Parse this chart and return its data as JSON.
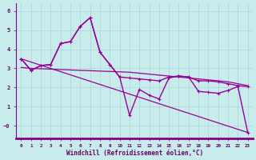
{
  "xlabel": "Windchill (Refroidissement éolien,°C)",
  "bg_color": "#c8ecec",
  "grid_color": "#b0d8d8",
  "line_color": "#990099",
  "axis_bar_color": "#880088",
  "xlim": [
    -0.5,
    23.5
  ],
  "ylim": [
    -0.65,
    6.4
  ],
  "xticks": [
    0,
    1,
    2,
    3,
    4,
    5,
    6,
    7,
    8,
    9,
    10,
    11,
    12,
    13,
    14,
    15,
    16,
    17,
    18,
    19,
    20,
    21,
    22,
    23
  ],
  "yticks": [
    0,
    1,
    2,
    3,
    4,
    5,
    6
  ],
  "ytick_labels": [
    "−0",
    "1",
    "2",
    "3",
    "4",
    "5",
    "6"
  ],
  "series": [
    {
      "x": [
        0,
        1,
        2,
        3,
        4,
        5,
        6,
        7,
        8,
        9,
        10,
        11,
        12,
        13,
        14,
        15,
        16,
        17,
        18,
        19,
        20,
        21,
        22,
        23
      ],
      "y": [
        3.5,
        2.9,
        3.15,
        3.2,
        4.3,
        4.4,
        5.2,
        5.65,
        3.85,
        3.2,
        2.55,
        2.5,
        2.45,
        2.4,
        2.35,
        2.55,
        2.6,
        2.55,
        2.35,
        2.35,
        2.3,
        2.2,
        2.1,
        2.05
      ],
      "marker": true,
      "lw": 1.0
    },
    {
      "x": [
        0,
        1,
        2,
        3,
        4,
        5,
        6,
        7,
        8,
        9,
        10,
        11,
        12,
        13,
        14,
        15,
        16,
        17,
        18,
        19,
        20,
        21,
        22,
        23
      ],
      "y": [
        3.5,
        2.9,
        3.15,
        3.2,
        4.3,
        4.4,
        5.2,
        5.65,
        3.85,
        3.2,
        2.55,
        0.55,
        1.9,
        1.6,
        1.4,
        2.5,
        2.6,
        2.55,
        1.8,
        1.75,
        1.7,
        1.85,
        2.05,
        -0.35
      ],
      "marker": true,
      "lw": 1.0
    },
    {
      "x": [
        0,
        1,
        2,
        3,
        4,
        5,
        6,
        7,
        8,
        9,
        10,
        11,
        12,
        13,
        14,
        15,
        16,
        17,
        18,
        19,
        20,
        21,
        22,
        23
      ],
      "y": [
        3.05,
        3.0,
        2.98,
        2.96,
        2.94,
        2.92,
        2.9,
        2.88,
        2.86,
        2.84,
        2.82,
        2.8,
        2.75,
        2.7,
        2.65,
        2.6,
        2.55,
        2.5,
        2.45,
        2.4,
        2.35,
        2.3,
        2.2,
        2.1
      ],
      "marker": false,
      "lw": 0.9
    },
    {
      "x": [
        0,
        23
      ],
      "y": [
        3.5,
        -0.35
      ],
      "marker": false,
      "lw": 0.9
    }
  ]
}
